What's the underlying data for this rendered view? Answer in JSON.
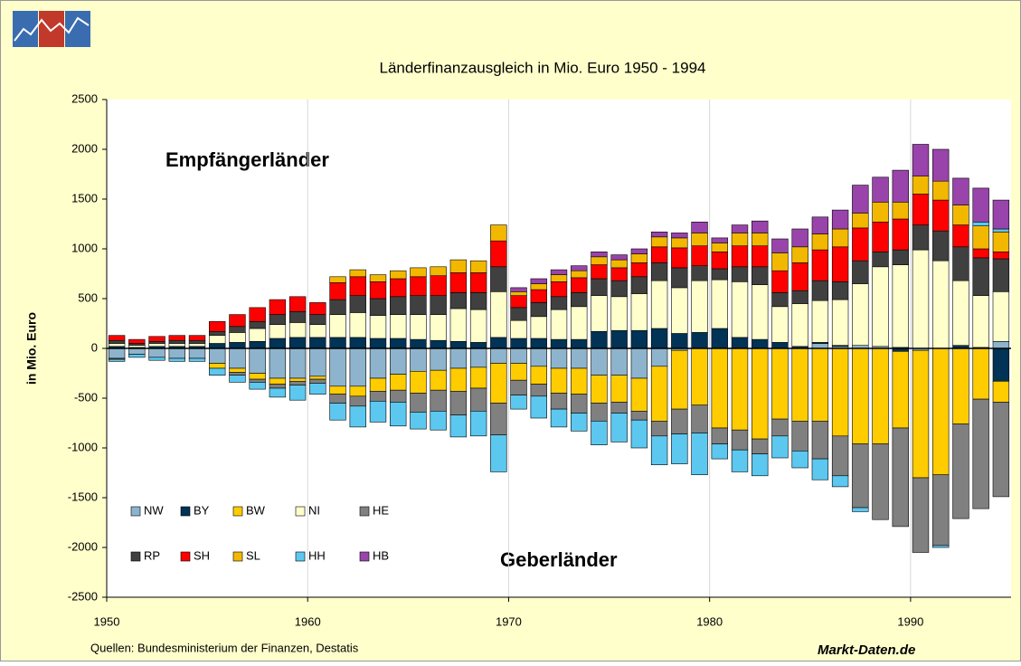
{
  "chart_data": {
    "type": "bar",
    "stacked": true,
    "title": "Länderfinanzausgleich in Mio. Euro 1950 - 1994",
    "y_label": "in Mio. Euro",
    "annotations": [
      "Empfängerländer",
      "Geberländer"
    ],
    "source": "Quellen: Bundesministerium der Finanzen, Destatis",
    "brand": "Markt-Daten.de",
    "x": [
      1950,
      1951,
      1952,
      1953,
      1954,
      1955,
      1956,
      1957,
      1958,
      1959,
      1960,
      1961,
      1962,
      1963,
      1964,
      1965,
      1966,
      1967,
      1968,
      1969,
      1970,
      1971,
      1972,
      1973,
      1974,
      1975,
      1976,
      1977,
      1978,
      1979,
      1980,
      1981,
      1982,
      1983,
      1984,
      1985,
      1986,
      1987,
      1988,
      1989,
      1990,
      1991,
      1992,
      1993,
      1994
    ],
    "xlim": [
      1950,
      1995
    ],
    "xticks": [
      1950,
      1960,
      1970,
      1980,
      1990
    ],
    "ylim": [
      -2500,
      2500
    ],
    "yticks": [
      -2500,
      -2000,
      -1500,
      -1000,
      -500,
      0,
      500,
      1000,
      1500,
      2000,
      2500
    ],
    "grid": "x",
    "legend": "lower left",
    "series": [
      {
        "name": "NW",
        "color": "#8db4cc",
        "values": [
          -100,
          -60,
          -90,
          -100,
          -100,
          -150,
          -200,
          -250,
          -300,
          -300,
          -280,
          -380,
          -380,
          -300,
          -260,
          -230,
          -220,
          -200,
          -190,
          -150,
          -150,
          -180,
          -200,
          -200,
          -270,
          -270,
          -300,
          -180,
          -20,
          0,
          0,
          0,
          0,
          0,
          0,
          50,
          20,
          30,
          20,
          10,
          -20,
          0,
          0,
          10,
          70
        ]
      },
      {
        "name": "BY",
        "color": "#003355",
        "values": [
          20,
          10,
          20,
          20,
          20,
          50,
          60,
          70,
          100,
          110,
          110,
          110,
          110,
          100,
          100,
          90,
          80,
          70,
          60,
          110,
          100,
          100,
          90,
          90,
          170,
          180,
          180,
          200,
          150,
          160,
          200,
          110,
          90,
          60,
          20,
          10,
          10,
          0,
          0,
          -30,
          0,
          0,
          30,
          0,
          -330
        ]
      },
      {
        "name": "BW",
        "color": "#ffcc00",
        "values": [
          0,
          0,
          0,
          0,
          0,
          -50,
          -40,
          -60,
          -60,
          -30,
          -30,
          -80,
          -100,
          -130,
          -160,
          -220,
          -200,
          -230,
          -210,
          -400,
          -170,
          -180,
          -250,
          -260,
          -280,
          -270,
          -330,
          -550,
          -590,
          -570,
          -800,
          -820,
          -910,
          -710,
          -730,
          -730,
          -880,
          -960,
          -960,
          -770,
          -1280,
          -1270,
          -760,
          -510,
          -210
        ]
      },
      {
        "name": "NI",
        "color": "#ffffcc",
        "values": [
          30,
          20,
          30,
          30,
          30,
          80,
          100,
          130,
          140,
          150,
          130,
          230,
          250,
          230,
          240,
          250,
          260,
          330,
          330,
          460,
          180,
          220,
          300,
          330,
          360,
          340,
          370,
          480,
          460,
          520,
          490,
          560,
          550,
          360,
          430,
          420,
          460,
          620,
          800,
          830,
          990,
          880,
          650,
          520,
          500
        ]
      },
      {
        "name": "HE",
        "color": "#808080",
        "values": [
          -10,
          0,
          0,
          0,
          0,
          0,
          -30,
          -30,
          -40,
          -40,
          -40,
          -90,
          -100,
          -100,
          -120,
          -190,
          -210,
          -240,
          -230,
          -320,
          -150,
          -120,
          -160,
          -190,
          -180,
          -110,
          -90,
          -150,
          -250,
          -280,
          -160,
          -200,
          -150,
          -170,
          -300,
          -380,
          -400,
          -640,
          -760,
          -990,
          -750,
          -710,
          -950,
          -1100,
          -950
        ]
      },
      {
        "name": "RP",
        "color": "#404040",
        "values": [
          30,
          20,
          20,
          30,
          30,
          40,
          60,
          70,
          100,
          110,
          100,
          150,
          170,
          170,
          180,
          190,
          190,
          160,
          170,
          250,
          130,
          140,
          130,
          140,
          170,
          160,
          170,
          180,
          200,
          150,
          110,
          150,
          180,
          140,
          130,
          200,
          180,
          230,
          150,
          150,
          250,
          300,
          340,
          380,
          330
        ]
      },
      {
        "name": "SH",
        "color": "#ff0000",
        "values": [
          50,
          40,
          50,
          50,
          50,
          100,
          120,
          140,
          150,
          150,
          120,
          170,
          190,
          170,
          180,
          190,
          200,
          200,
          200,
          260,
          120,
          130,
          150,
          150,
          140,
          130,
          140,
          160,
          200,
          200,
          170,
          210,
          210,
          220,
          280,
          310,
          350,
          330,
          300,
          310,
          310,
          310,
          220,
          90,
          70
        ]
      },
      {
        "name": "SL",
        "color": "#f2b800",
        "values": [
          0,
          0,
          0,
          0,
          0,
          0,
          0,
          0,
          0,
          0,
          0,
          60,
          70,
          70,
          80,
          90,
          90,
          130,
          120,
          160,
          40,
          60,
          70,
          70,
          80,
          80,
          90,
          100,
          100,
          130,
          90,
          130,
          130,
          180,
          160,
          160,
          180,
          150,
          200,
          170,
          180,
          190,
          200,
          230,
          200
        ]
      },
      {
        "name": "HH",
        "color": "#5cc8f0",
        "values": [
          -20,
          -30,
          -30,
          -30,
          -30,
          -70,
          -70,
          -70,
          -90,
          -150,
          -110,
          -170,
          -210,
          -210,
          -240,
          -170,
          -190,
          -220,
          -250,
          -370,
          -140,
          -220,
          -180,
          -180,
          -240,
          -290,
          -280,
          -290,
          -300,
          -420,
          -150,
          -220,
          -220,
          -220,
          -170,
          -210,
          -110,
          -40,
          0,
          0,
          0,
          -20,
          0,
          40,
          30
        ]
      },
      {
        "name": "HB",
        "color": "#9944aa",
        "values": [
          0,
          0,
          0,
          0,
          0,
          0,
          0,
          0,
          0,
          0,
          0,
          0,
          0,
          0,
          0,
          0,
          0,
          0,
          0,
          0,
          40,
          50,
          50,
          50,
          50,
          50,
          50,
          50,
          50,
          110,
          50,
          80,
          120,
          140,
          180,
          170,
          190,
          280,
          250,
          320,
          320,
          320,
          270,
          340,
          290
        ]
      }
    ]
  }
}
